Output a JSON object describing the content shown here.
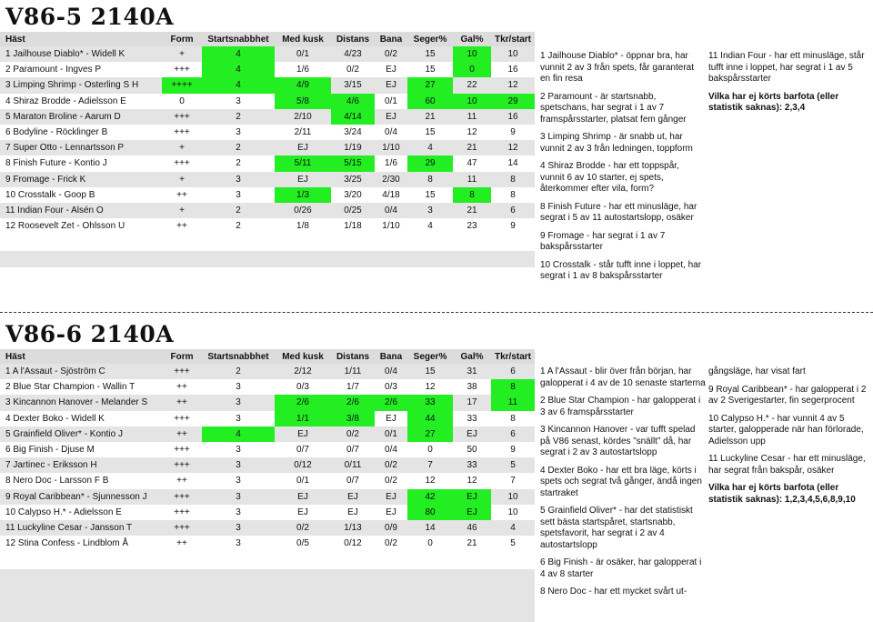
{
  "sections": [
    {
      "title": "V86-5  2140A",
      "headers": [
        "Häst",
        "Form",
        "Startsnabbhet",
        "Med kusk",
        "Distans",
        "Bana",
        "Seger%",
        "Gal%",
        "Tkr/start"
      ],
      "rows": [
        {
          "cells": [
            "1 Jailhouse Diablo* - Widell K",
            "+",
            "4",
            "0/1",
            "4/23",
            "0/2",
            "15",
            "10",
            "10"
          ],
          "hl": [
            2,
            7
          ]
        },
        {
          "cells": [
            "2 Paramount - Ingves P",
            "+++",
            "4",
            "1/6",
            "0/2",
            "EJ",
            "15",
            "0",
            "16"
          ],
          "hl": [
            2,
            7
          ]
        },
        {
          "cells": [
            "3 Limping Shrimp - Osterling S H",
            "++++",
            "4",
            "4/9",
            "3/15",
            "EJ",
            "27",
            "22",
            "12"
          ],
          "hl": [
            1,
            2,
            3,
            6
          ]
        },
        {
          "cells": [
            "4 Shiraz Brodde - Adielsson E",
            "0",
            "3",
            "5/8",
            "4/6",
            "0/1",
            "60",
            "10",
            "29"
          ],
          "hl": [
            3,
            4,
            6,
            7,
            8
          ]
        },
        {
          "cells": [
            "5 Maraton Broline - Aarum D",
            "+++",
            "2",
            "2/10",
            "4/14",
            "EJ",
            "21",
            "11",
            "16"
          ],
          "hl": [
            4
          ]
        },
        {
          "cells": [
            "6 Bodyline - Röcklinger B",
            "+++",
            "3",
            "2/11",
            "3/24",
            "0/4",
            "15",
            "12",
            "9"
          ],
          "hl": []
        },
        {
          "cells": [
            "7 Super Otto - Lennartsson P",
            "+",
            "2",
            "EJ",
            "1/19",
            "1/10",
            "4",
            "21",
            "12"
          ],
          "hl": []
        },
        {
          "cells": [
            "8 Finish Future - Kontio J",
            "+++",
            "2",
            "5/11",
            "5/15",
            "1/6",
            "29",
            "47",
            "14"
          ],
          "hl": [
            3,
            4,
            6
          ]
        },
        {
          "cells": [
            "9 Fromage - Frick K",
            "+",
            "3",
            "EJ",
            "3/25",
            "2/30",
            "8",
            "11",
            "8"
          ],
          "hl": []
        },
        {
          "cells": [
            "10 Crosstalk - Goop B",
            "++",
            "3",
            "1/3",
            "3/20",
            "4/18",
            "15",
            "8",
            "8"
          ],
          "hl": [
            3,
            7
          ]
        },
        {
          "cells": [
            "11 Indian Four - Alsén O",
            "+",
            "2",
            "0/26",
            "0/25",
            "0/4",
            "3",
            "21",
            "6"
          ],
          "hl": []
        },
        {
          "cells": [
            "12 Roosevelt Zet - Ohlsson U",
            "++",
            "2",
            "1/8",
            "1/18",
            "1/10",
            "4",
            "23",
            "9"
          ],
          "hl": []
        }
      ],
      "comments_a": [
        "1 Jailhouse Diablo* - öppnar bra, har vunnit 2 av 3 från spets, får garanterat en fin resa",
        "2 Paramount - är startsnabb, spetschans, har segrat i 1 av 7 framspårsstarter, platsat fem gånger",
        "3 Limping Shrimp - är snabb ut, har vunnit 2 av 3 från ledningen, toppform",
        "4 Shiraz Brodde - har ett toppspår, vunnit 6 av 10 starter, ej spets, återkommer efter vila, form?",
        "8 Finish Future - har ett minusläge, har segrat i 5 av 11 autostartslopp, osäker",
        "9 Fromage - har segrat i 1 av 7 bakspårsstarter",
        "10 Crosstalk - står tufft inne i loppet, har segrat i 1 av 8 bakspårsstarter"
      ],
      "comments_b": [
        "11 Indian Four - har ett minusläge, står tufft inne i loppet, har segrat i 1 av 5 bakspårsstarter"
      ],
      "barefoot": "Vilka har ej körts barfota (eller statistik saknas): 2,3,4"
    },
    {
      "title": "V86-6  2140A",
      "headers": [
        "Häst",
        "Form",
        "Startsnabbhet",
        "Med kusk",
        "Distans",
        "Bana",
        "Seger%",
        "Gal%",
        "Tkr/start"
      ],
      "rows": [
        {
          "cells": [
            "1 A l'Assaut - Sjöström C",
            "+++",
            "2",
            "2/12",
            "1/11",
            "0/4",
            "15",
            "31",
            "6"
          ],
          "hl": []
        },
        {
          "cells": [
            "2 Blue Star Champion - Wallin T",
            "++",
            "3",
            "0/3",
            "1/7",
            "0/3",
            "12",
            "38",
            "8"
          ],
          "hl": [
            8
          ]
        },
        {
          "cells": [
            "3 Kincannon Hanover - Melander S",
            "++",
            "3",
            "2/6",
            "2/6",
            "2/6",
            "33",
            "17",
            "11"
          ],
          "hl": [
            3,
            4,
            5,
            6,
            8
          ]
        },
        {
          "cells": [
            "4 Dexter Boko - Widell K",
            "+++",
            "3",
            "1/1",
            "3/8",
            "EJ",
            "44",
            "33",
            "8"
          ],
          "hl": [
            3,
            4,
            6
          ]
        },
        {
          "cells": [
            "5 Grainfield Oliver* - Kontio J",
            "++",
            "4",
            "EJ",
            "0/2",
            "0/1",
            "27",
            "EJ",
            "6"
          ],
          "hl": [
            2,
            6
          ]
        },
        {
          "cells": [
            "6 Big Finish - Djuse M",
            "+++",
            "3",
            "0/7",
            "0/7",
            "0/4",
            "0",
            "50",
            "9"
          ],
          "hl": []
        },
        {
          "cells": [
            "7 Jartinec - Eriksson H",
            "+++",
            "3",
            "0/12",
            "0/11",
            "0/2",
            "7",
            "33",
            "5"
          ],
          "hl": []
        },
        {
          "cells": [
            "8 Nero Doc - Larsson F B",
            "++",
            "3",
            "0/1",
            "0/7",
            "0/2",
            "12",
            "12",
            "7"
          ],
          "hl": []
        },
        {
          "cells": [
            "9 Royal Caribbean* - Sjunnesson J",
            "+++",
            "3",
            "EJ",
            "EJ",
            "EJ",
            "42",
            "EJ",
            "10"
          ],
          "hl": [
            6,
            7
          ]
        },
        {
          "cells": [
            "10 Calypso H.* - Adielsson E",
            "+++",
            "3",
            "EJ",
            "EJ",
            "EJ",
            "80",
            "EJ",
            "10"
          ],
          "hl": [
            6,
            7
          ]
        },
        {
          "cells": [
            "11 Luckyline Cesar - Jansson T",
            "+++",
            "3",
            "0/2",
            "1/13",
            "0/9",
            "14",
            "46",
            "4"
          ],
          "hl": []
        },
        {
          "cells": [
            "12 Stina Confess - Lindblom Å",
            "++",
            "3",
            "0/5",
            "0/12",
            "0/2",
            "0",
            "21",
            "5"
          ],
          "hl": []
        }
      ],
      "comments_a": [
        "1 A l'Assaut - blir över från början, har galopperat i 4 av de 10 senaste starterna",
        "2 Blue Star Champion - har galopperat i 3 av 6 framspårsstarter",
        "3 Kincannon Hanover - var tufft spelad på V86 senast, kördes ”snällt” då, har segrat i 2 av 3 autostartslopp",
        "4 Dexter Boko - har ett bra läge, körts i spets och segrat två gånger, ändå ingen startraket",
        "5 Grainfield Oliver* - har det statistiskt sett bästa startspåret, startsnabb, spetsfavorit, har segrat i 2 av 4 autostartslopp",
        "6 Big Finish - är osäker, har galopperat i 4 av 8 starter",
        "8 Nero Doc - har ett mycket svårt ut-"
      ],
      "comments_b": [
        "gångsläge, har visat fart",
        "9 Royal Caribbean* - har galopperat i 2 av 2 Sverigestarter, fin segerprocent",
        "10 Calypso H.* - har vunnit 4 av 5 starter, galopperade när han förlorade, Adielsson upp",
        "11 Luckyline Cesar - har ett minusläge, har segrat från bakspår, osäker"
      ],
      "barefoot": "Vilka har ej körts barfota (eller statistik saknas): 1,2,3,4,5,6,8,9,10"
    }
  ]
}
